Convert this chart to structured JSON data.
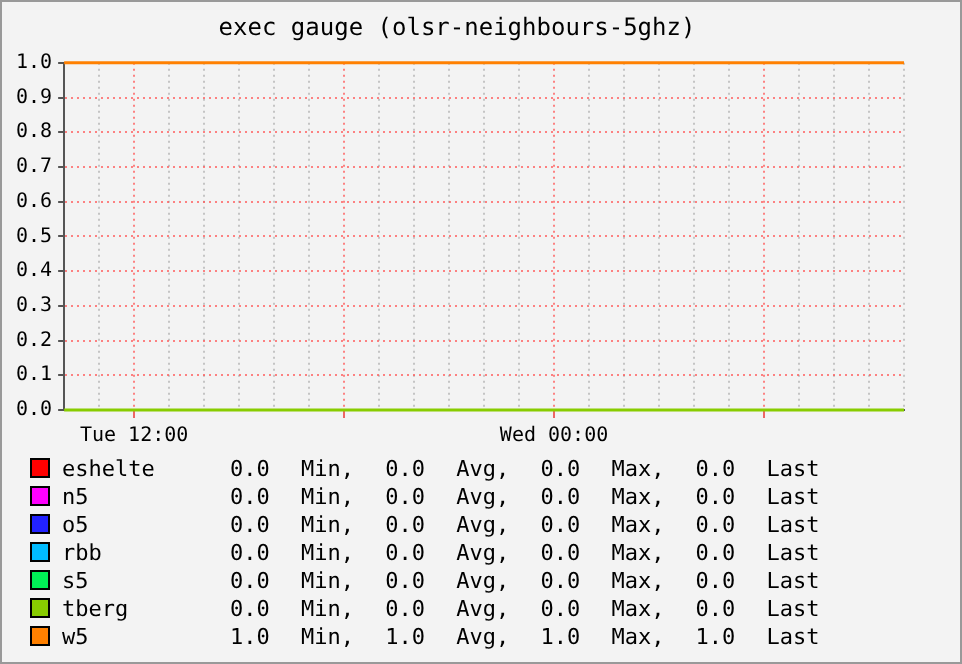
{
  "chart_data": {
    "type": "line",
    "title": "exec gauge (olsr-neighbours-5ghz)",
    "categories": [
      null,
      null,
      "Tue 12:00",
      null,
      null,
      null,
      null,
      null,
      null,
      null,
      null,
      null,
      null,
      null,
      "Wed 00:00",
      null,
      null,
      null,
      null,
      null,
      null,
      null,
      null,
      null,
      null
    ],
    "ylim": [
      0,
      1
    ],
    "yticks": [
      {
        "value": 0,
        "label": "0.0"
      },
      {
        "value": 0.1,
        "label": "0.1"
      },
      {
        "value": 0.2,
        "label": "0.2"
      },
      {
        "value": 0.3,
        "label": "0.3"
      },
      {
        "value": 0.4,
        "label": "0.4"
      },
      {
        "value": 0.5,
        "label": "0.5"
      },
      {
        "value": 0.6,
        "label": "0.6"
      },
      {
        "value": 0.7,
        "label": "0.7"
      },
      {
        "value": 0.8,
        "label": "0.8"
      },
      {
        "value": 0.9,
        "label": "0.9"
      },
      {
        "value": 1,
        "label": "1.0"
      }
    ],
    "series": [
      {
        "name": "eshelte",
        "color": "#ff0000",
        "values": [
          null,
          null,
          null,
          null,
          null,
          null,
          null,
          null,
          null,
          null,
          null,
          null,
          null,
          null,
          null,
          null,
          null,
          null,
          null,
          null,
          null,
          null,
          null,
          null,
          null
        ]
      },
      {
        "name": "n5",
        "color": "#ff00ff",
        "values": [
          null,
          null,
          null,
          null,
          null,
          null,
          null,
          null,
          null,
          null,
          null,
          null,
          null,
          null,
          null,
          null,
          null,
          null,
          null,
          null,
          null,
          null,
          null,
          null,
          null
        ]
      },
      {
        "name": "o5",
        "color": "#2222ff",
        "values": [
          null,
          null,
          null,
          null,
          null,
          null,
          null,
          null,
          null,
          null,
          null,
          null,
          null,
          null,
          null,
          null,
          null,
          null,
          null,
          null,
          null,
          null,
          null,
          null,
          null
        ]
      },
      {
        "name": "rbb",
        "color": "#00bbff",
        "values": [
          null,
          null,
          null,
          null,
          null,
          null,
          null,
          null,
          null,
          null,
          null,
          null,
          null,
          null,
          null,
          null,
          null,
          null,
          null,
          null,
          null,
          null,
          null,
          null,
          null
        ]
      },
      {
        "name": "s5",
        "color": "#00ee55",
        "values": [
          null,
          null,
          null,
          null,
          null,
          null,
          null,
          null,
          null,
          null,
          null,
          null,
          null,
          null,
          null,
          null,
          null,
          null,
          null,
          null,
          null,
          null,
          null,
          null,
          null
        ]
      },
      {
        "name": "tberg",
        "color": "#88cc00",
        "values": [
          0,
          0,
          0,
          0,
          0,
          0,
          0,
          0,
          0,
          0,
          0,
          0,
          0,
          0,
          0,
          0,
          0,
          0,
          0,
          0,
          0,
          0,
          0,
          0,
          0
        ]
      },
      {
        "name": "w5",
        "color": "#ff8000",
        "values": [
          1,
          1,
          1,
          1,
          1,
          1,
          1,
          1,
          1,
          1,
          1,
          1,
          1,
          1,
          1,
          1,
          1,
          1,
          1,
          1,
          1,
          1,
          1,
          1,
          1
        ]
      }
    ],
    "annotations": [
      "0.0 Min, 0.0 Avg, 0.0 Max, 0.0 Last",
      "0.0 Min, 0.0 Avg, 0.0 Max, 0.0 Last",
      "0.0 Min, 0.0 Avg, 0.0 Max, 0.0 Last",
      "0.0 Min, 0.0 Avg, 0.0 Max, 0.0 Last",
      "0.0 Min, 0.0 Avg, 0.0 Max, 0.0 Last",
      "0.0 Min, 0.0 Avg, 0.0 Max, 0.0 Last",
      "1.0 Min, 1.0 Avg, 1.0 Max, 1.0 Last"
    ],
    "grid": true,
    "legend": "bottom",
    "marker": "none",
    "line_style": "solid"
  }
}
